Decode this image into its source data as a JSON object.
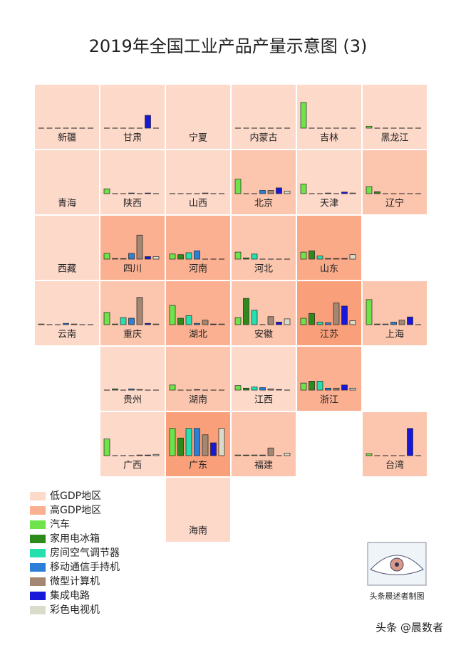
{
  "chart_data": {
    "type": "tilemap",
    "title": "2019年全国工业产品产量示意图 (3)",
    "levels": [
      {
        "name": "低GDP地区",
        "color": "#fdd9c9"
      },
      {
        "name": "高GDP地区",
        "color": "#fbb092"
      }
    ],
    "series": [
      {
        "name": "汽车",
        "color": "#6ee34a"
      },
      {
        "name": "家用电冰箱",
        "color": "#2f8a1c"
      },
      {
        "name": "房间空气调节器",
        "color": "#25e0ae"
      },
      {
        "name": "移动通信手持机",
        "color": "#2a80d6"
      },
      {
        "name": "微型计算机",
        "color": "#a38772"
      },
      {
        "name": "集成电路",
        "color": "#1818d8"
      },
      {
        "name": "彩色电视机",
        "color": "#dadccb"
      }
    ],
    "regions": [
      {
        "name": "新疆",
        "color": "#fdd9c9",
        "values": [
          0,
          0,
          0,
          0,
          0,
          0,
          0
        ]
      },
      {
        "name": "甘肃",
        "color": "#fdd9c9",
        "values": [
          0,
          0,
          0,
          0,
          0,
          40,
          0
        ]
      },
      {
        "name": "宁夏",
        "color": "#fdd9c9",
        "values": [
          null,
          null,
          null,
          null,
          null,
          null,
          null
        ]
      },
      {
        "name": "内蒙古",
        "color": "#fdd9c9",
        "values": [
          0,
          0,
          0,
          0,
          0,
          0,
          0
        ]
      },
      {
        "name": "吉林",
        "color": "#fdd9c9",
        "values": [
          80,
          0,
          0,
          0,
          0,
          0,
          0
        ]
      },
      {
        "name": "黑龙江",
        "color": "#fdd9c9",
        "values": [
          6,
          0,
          0,
          0,
          0,
          0,
          0
        ]
      },
      {
        "name": "青海",
        "color": "#fdd9c9",
        "values": [
          null,
          null,
          null,
          null,
          null,
          null,
          null
        ]
      },
      {
        "name": "陕西",
        "color": "#fdd9c9",
        "values": [
          15,
          0,
          0,
          2,
          0,
          2,
          0
        ]
      },
      {
        "name": "山西",
        "color": "#fdd9c9",
        "values": [
          0,
          0,
          0,
          0,
          2,
          0,
          0
        ]
      },
      {
        "name": "北京",
        "color": "#fcc6ae",
        "values": [
          45,
          0,
          0,
          10,
          10,
          18,
          8
        ]
      },
      {
        "name": "天津",
        "color": "#fdd9c9",
        "values": [
          30,
          0,
          0,
          2,
          0,
          5,
          2
        ]
      },
      {
        "name": "辽宁",
        "color": "#fcc6ae",
        "values": [
          22,
          6,
          0,
          0,
          0,
          0,
          0
        ]
      },
      {
        "name": "西藏",
        "color": "#fdd9c9",
        "values": [
          null,
          null,
          null,
          null,
          null,
          null,
          null
        ]
      },
      {
        "name": "四川",
        "color": "#fbb092",
        "values": [
          18,
          2,
          2,
          18,
          75,
          8,
          8
        ]
      },
      {
        "name": "河南",
        "color": "#fbb092",
        "values": [
          16,
          14,
          20,
          26,
          0,
          0,
          0
        ]
      },
      {
        "name": "河北",
        "color": "#fcc6ae",
        "values": [
          22,
          4,
          16,
          0,
          0,
          0,
          0
        ]
      },
      {
        "name": "山东",
        "color": "#fbaa88",
        "values": [
          22,
          26,
          10,
          2,
          2,
          2,
          14
        ]
      },
      {
        "name": "云南",
        "color": "#fdd9c9",
        "values": [
          2,
          0,
          0,
          4,
          2,
          0,
          0
        ]
      },
      {
        "name": "重庆",
        "color": "#fcc6ae",
        "values": [
          38,
          2,
          22,
          20,
          85,
          4,
          2
        ]
      },
      {
        "name": "湖北",
        "color": "#fbb092",
        "values": [
          60,
          20,
          28,
          4,
          14,
          2,
          2
        ]
      },
      {
        "name": "安徽",
        "color": "#fcc6ae",
        "values": [
          22,
          82,
          45,
          0,
          25,
          8,
          18
        ]
      },
      {
        "name": "江苏",
        "color": "#f9a07a",
        "values": [
          20,
          35,
          8,
          6,
          68,
          58,
          12
        ]
      },
      {
        "name": "上海",
        "color": "#fcc6ae",
        "values": [
          78,
          2,
          2,
          8,
          14,
          24,
          0
        ]
      },
      {
        "name": "贵州",
        "color": "#fdd9c9",
        "values": [
          0,
          4,
          0,
          4,
          2,
          0,
          0
        ]
      },
      {
        "name": "湖南",
        "color": "#fcc6ae",
        "values": [
          16,
          0,
          0,
          2,
          0,
          0,
          0
        ]
      },
      {
        "name": "江西",
        "color": "#fdd9c9",
        "values": [
          14,
          6,
          10,
          8,
          4,
          2,
          0
        ]
      },
      {
        "name": "浙江",
        "color": "#fbb092",
        "values": [
          22,
          28,
          28,
          6,
          6,
          16,
          6
        ]
      },
      {
        "name": "广西",
        "color": "#fdd9c9",
        "values": [
          52,
          0,
          0,
          0,
          2,
          2,
          4
        ]
      },
      {
        "name": "广东",
        "color": "#f9a07a",
        "values": [
          85,
          55,
          85,
          85,
          65,
          40,
          85
        ]
      },
      {
        "name": "福建",
        "color": "#fcc6ae",
        "values": [
          2,
          2,
          2,
          2,
          24,
          0,
          8
        ]
      },
      {
        "name": "台湾",
        "color": "#fcc6ae",
        "values": [
          6,
          0,
          0,
          0,
          0,
          85,
          0
        ]
      },
      {
        "name": "海南",
        "color": "#fdd9c9",
        "values": [
          null,
          null,
          null,
          null,
          null,
          null,
          null
        ]
      }
    ],
    "credit": "头条晨述者制图",
    "watermark": "头条 @晨数者"
  }
}
